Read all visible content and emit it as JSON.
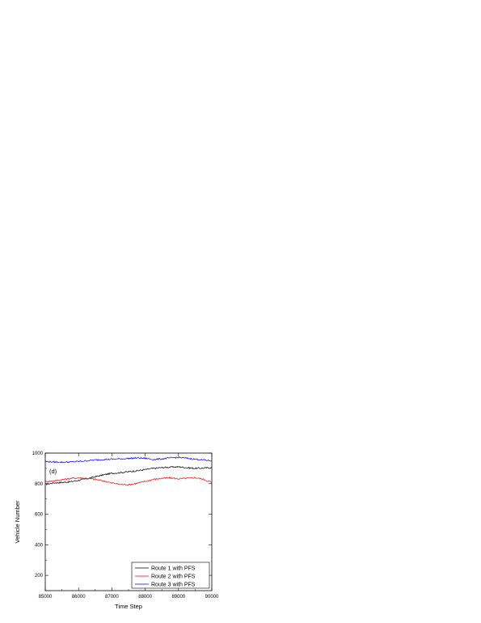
{
  "chart_data": {
    "type": "line",
    "title": "",
    "panel_label": "(d)",
    "xlabel": "Time Step",
    "ylabel": "Vehicle Number",
    "xlim": [
      85000,
      90000
    ],
    "ylim": [
      100,
      1000
    ],
    "x_ticks": [
      85000,
      86000,
      87000,
      88000,
      89000,
      90000
    ],
    "x_tick_labels": [
      "85000",
      "86000",
      "87000",
      "88000",
      "89000",
      "90000"
    ],
    "y_ticks": [
      200,
      400,
      600,
      800,
      1000
    ],
    "y_tick_labels": [
      "200",
      "400",
      "600",
      "800",
      "1000"
    ],
    "grid": false,
    "legend_position": "bottom-right",
    "x": [
      85000,
      85250,
      85500,
      85750,
      86000,
      86250,
      86500,
      86750,
      87000,
      87250,
      87500,
      87750,
      88000,
      88250,
      88500,
      88750,
      89000,
      89250,
      89500,
      89750,
      90000
    ],
    "series": [
      {
        "name": "Route 1 with PFS",
        "color": "#000000",
        "values": [
          795,
          805,
          808,
          812,
          822,
          832,
          845,
          858,
          868,
          872,
          878,
          884,
          892,
          900,
          905,
          908,
          910,
          905,
          900,
          902,
          905
        ]
      },
      {
        "name": "Route 2 with PFS",
        "color": "#ff0000",
        "values": [
          812,
          818,
          826,
          834,
          838,
          835,
          828,
          818,
          805,
          795,
          793,
          802,
          815,
          828,
          835,
          838,
          832,
          835,
          840,
          828,
          808
        ]
      },
      {
        "name": "Route 3 with PFS",
        "color": "#0000ff",
        "values": [
          945,
          942,
          940,
          942,
          945,
          950,
          955,
          958,
          960,
          962,
          965,
          968,
          966,
          958,
          962,
          968,
          972,
          966,
          960,
          955,
          950
        ]
      }
    ]
  }
}
